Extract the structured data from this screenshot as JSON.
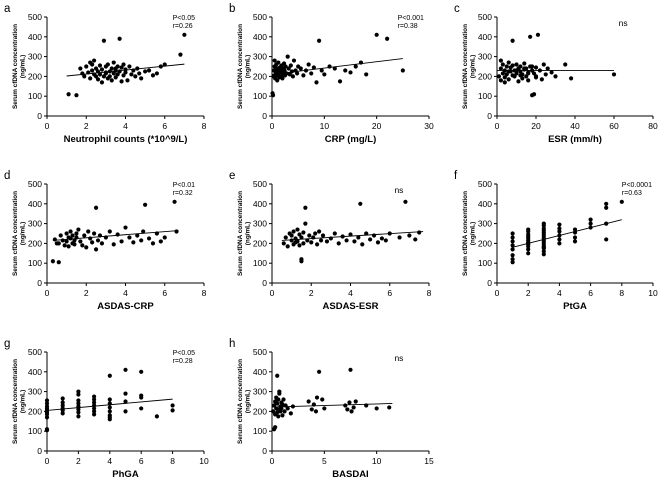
{
  "chart_data": [
    {
      "type": "scatter",
      "panel": "a",
      "xlabel": "Neutrophil counts (*10^9/L)",
      "ylabel": "Serum cfDNA concentration (ng/mL)",
      "xlim": [
        0,
        8
      ],
      "ylim": [
        0,
        500
      ],
      "xticks": [
        0,
        2,
        4,
        6,
        8
      ],
      "yticks": [
        0,
        100,
        200,
        300,
        400,
        500
      ],
      "stats": [
        "P<0.05",
        "r=0.26"
      ],
      "fit": [
        [
          1.0,
          202
        ],
        [
          7.0,
          262
        ]
      ],
      "x": [
        1.1,
        1.5,
        1.7,
        1.8,
        1.9,
        2.0,
        2.1,
        2.2,
        2.2,
        2.3,
        2.3,
        2.4,
        2.4,
        2.5,
        2.5,
        2.6,
        2.6,
        2.7,
        2.7,
        2.8,
        2.8,
        2.9,
        2.9,
        3.0,
        3.0,
        3.1,
        3.1,
        3.2,
        3.2,
        3.3,
        3.3,
        3.4,
        3.4,
        3.5,
        3.5,
        3.6,
        3.6,
        3.7,
        3.7,
        3.8,
        3.8,
        3.9,
        3.9,
        4.0,
        4.0,
        4.1,
        4.2,
        4.3,
        4.4,
        4.5,
        4.6,
        4.7,
        4.8,
        5.0,
        5.2,
        5.4,
        5.6,
        5.8,
        6.0,
        6.8,
        7.0,
        3.5,
        3.0
      ],
      "y": [
        110,
        105,
        240,
        215,
        200,
        250,
        220,
        270,
        190,
        230,
        260,
        210,
        280,
        200,
        240,
        185,
        225,
        255,
        210,
        170,
        235,
        200,
        380,
        215,
        250,
        190,
        260,
        225,
        200,
        240,
        180,
        215,
        270,
        230,
        195,
        250,
        210,
        390,
        225,
        245,
        175,
        260,
        205,
        220,
        235,
        180,
        250,
        210,
        230,
        200,
        240,
        215,
        190,
        225,
        230,
        205,
        215,
        250,
        260,
        310,
        410,
        240,
        220
      ]
    },
    {
      "type": "scatter",
      "panel": "b",
      "xlabel": "CRP (mg/L)",
      "ylabel": "Serum cfDNA concentration (ng/mL)",
      "xlim": [
        0,
        30
      ],
      "ylim": [
        0,
        500
      ],
      "xticks": [
        0,
        10,
        20,
        30
      ],
      "yticks": [
        0,
        100,
        200,
        300,
        400,
        500
      ],
      "stats": [
        "P<0.001",
        "r=0.38"
      ],
      "fit": [
        [
          0,
          210
        ],
        [
          25,
          290
        ]
      ],
      "x": [
        0.1,
        0.2,
        0.3,
        0.4,
        0.5,
        0.6,
        0.7,
        0.8,
        0.9,
        1.0,
        1.0,
        1.1,
        1.2,
        1.3,
        1.4,
        1.5,
        1.6,
        1.7,
        1.8,
        1.9,
        2.0,
        2.1,
        2.2,
        2.3,
        2.4,
        2.5,
        2.6,
        2.8,
        3.0,
        3.2,
        3.4,
        3.6,
        3.8,
        4.0,
        4.2,
        4.5,
        4.8,
        5.0,
        5.5,
        6.0,
        6.5,
        7.0,
        7.5,
        8.0,
        8.5,
        9.0,
        9.5,
        10.0,
        11,
        12,
        13,
        14,
        15,
        16,
        17,
        18,
        20,
        22,
        25,
        0.5,
        1.5
      ],
      "y": [
        115,
        105,
        200,
        230,
        250,
        190,
        215,
        260,
        205,
        240,
        180,
        225,
        270,
        210,
        195,
        245,
        230,
        200,
        255,
        220,
        190,
        240,
        210,
        265,
        230,
        205,
        250,
        215,
        300,
        240,
        210,
        255,
        225,
        200,
        280,
        230,
        215,
        250,
        240,
        205,
        230,
        260,
        215,
        245,
        170,
        380,
        230,
        210,
        250,
        240,
        175,
        230,
        220,
        250,
        270,
        210,
        410,
        390,
        230,
        280,
        200
      ]
    },
    {
      "type": "scatter",
      "panel": "c",
      "xlabel": "ESR (mm/h)",
      "ylabel": "Serum cfDNA concentration (ng/mL)",
      "xlim": [
        0,
        80
      ],
      "ylim": [
        0,
        500
      ],
      "xticks": [
        0,
        20,
        40,
        60,
        80
      ],
      "yticks": [
        0,
        100,
        200,
        300,
        400,
        500
      ],
      "stats": [
        "ns"
      ],
      "fit": [
        [
          0,
          230
        ],
        [
          60,
          230
        ]
      ],
      "x": [
        1,
        2,
        2,
        3,
        3,
        4,
        4,
        5,
        5,
        6,
        6,
        7,
        7,
        8,
        8,
        9,
        9,
        10,
        10,
        11,
        11,
        12,
        12,
        13,
        13,
        14,
        14,
        15,
        15,
        16,
        16,
        17,
        17,
        18,
        18,
        19,
        19,
        20,
        20,
        21,
        22,
        23,
        24,
        25,
        26,
        28,
        30,
        35,
        38,
        60,
        2,
        4,
        6,
        8,
        10,
        12,
        14,
        16,
        18,
        20
      ],
      "y": [
        200,
        240,
        180,
        260,
        215,
        230,
        195,
        250,
        210,
        270,
        185,
        225,
        245,
        205,
        380,
        230,
        200,
        260,
        215,
        240,
        175,
        225,
        250,
        210,
        190,
        235,
        265,
        200,
        240,
        220,
        180,
        250,
        400,
        105,
        230,
        215,
        110,
        245,
        200,
        410,
        230,
        185,
        260,
        210,
        240,
        220,
        200,
        260,
        190,
        210,
        280,
        170,
        225,
        255,
        230,
        205,
        240,
        215,
        250,
        195
      ]
    },
    {
      "type": "scatter",
      "panel": "d",
      "xlabel": "ASDAS-CRP",
      "ylabel": "Serum cfDNA concentration (ng/mL)",
      "xlim": [
        0,
        8
      ],
      "ylim": [
        0,
        500
      ],
      "xticks": [
        0,
        2,
        4,
        6,
        8
      ],
      "yticks": [
        0,
        100,
        200,
        300,
        400,
        500
      ],
      "stats": [
        "P<0.01",
        "r=0.32"
      ],
      "fit": [
        [
          0.3,
          215
        ],
        [
          6.7,
          265
        ]
      ],
      "x": [
        0.3,
        0.4,
        0.5,
        0.6,
        0.7,
        0.8,
        0.9,
        1.0,
        1.0,
        1.1,
        1.1,
        1.2,
        1.2,
        1.3,
        1.3,
        1.4,
        1.4,
        1.5,
        1.5,
        1.6,
        1.7,
        1.8,
        1.9,
        2.0,
        2.1,
        2.2,
        2.3,
        2.4,
        2.5,
        2.6,
        2.7,
        2.8,
        3.0,
        3.2,
        3.4,
        3.6,
        3.8,
        4.0,
        4.2,
        4.4,
        4.6,
        4.8,
        5.0,
        5.2,
        5.4,
        5.6,
        5.8,
        6.0,
        6.5,
        6.6,
        2.5,
        0.6,
        4.9
      ],
      "y": [
        110,
        220,
        200,
        105,
        240,
        215,
        190,
        250,
        210,
        230,
        185,
        260,
        225,
        200,
        240,
        215,
        195,
        250,
        230,
        270,
        210,
        190,
        240,
        180,
        260,
        225,
        205,
        250,
        380,
        215,
        240,
        200,
        230,
        260,
        195,
        245,
        210,
        280,
        230,
        205,
        240,
        215,
        395,
        225,
        200,
        250,
        210,
        230,
        410,
        260,
        170,
        200,
        260
      ]
    },
    {
      "type": "scatter",
      "panel": "e",
      "xlabel": "ASDAS-ESR",
      "ylabel": "Serum cfDNA concentration (ng/mL)",
      "xlim": [
        0,
        8
      ],
      "ylim": [
        0,
        500
      ],
      "xticks": [
        0,
        2,
        4,
        6,
        8
      ],
      "yticks": [
        0,
        100,
        200,
        300,
        400,
        500
      ],
      "stats": [
        "ns"
      ],
      "fit": [
        [
          0.5,
          215
        ],
        [
          7.7,
          260
        ]
      ],
      "x": [
        0.6,
        0.7,
        0.8,
        0.9,
        1.0,
        1.0,
        1.1,
        1.1,
        1.2,
        1.2,
        1.3,
        1.3,
        1.4,
        1.4,
        1.5,
        1.5,
        1.6,
        1.6,
        1.7,
        1.8,
        1.9,
        2.0,
        2.1,
        2.2,
        2.3,
        2.4,
        2.5,
        2.6,
        2.8,
        3.0,
        3.2,
        3.4,
        3.6,
        3.8,
        4.0,
        4.2,
        4.4,
        4.6,
        4.8,
        5.0,
        5.2,
        5.4,
        5.6,
        5.8,
        6.0,
        6.5,
        6.8,
        7.0,
        7.3,
        7.5,
        1.5,
        1.7,
        4.5
      ],
      "y": [
        200,
        230,
        185,
        250,
        215,
        240,
        195,
        260,
        225,
        205,
        270,
        210,
        190,
        245,
        230,
        110,
        255,
        200,
        380,
        215,
        240,
        205,
        230,
        250,
        195,
        260,
        215,
        240,
        210,
        225,
        250,
        200,
        235,
        215,
        245,
        210,
        230,
        195,
        250,
        220,
        240,
        205,
        225,
        215,
        250,
        230,
        410,
        240,
        220,
        255,
        120,
        300,
        400
      ]
    },
    {
      "type": "scatter",
      "panel": "f",
      "xlabel": "PtGA",
      "ylabel": "Serum cfDNA concentration (ng/mL)",
      "xlim": [
        0,
        10
      ],
      "ylim": [
        0,
        500
      ],
      "xticks": [
        0,
        2,
        4,
        6,
        8,
        10
      ],
      "yticks": [
        0,
        100,
        200,
        300,
        400,
        500
      ],
      "stats": [
        "P<0.0001",
        "r=0.63"
      ],
      "fit": [
        [
          1.0,
          180
        ],
        [
          8.0,
          320
        ]
      ],
      "x": [
        1,
        1,
        1,
        1,
        1,
        1,
        1,
        2,
        2,
        2,
        2,
        2,
        2,
        2,
        2,
        2,
        2,
        2,
        3,
        3,
        3,
        3,
        3,
        3,
        3,
        3,
        3,
        3,
        3,
        3,
        3,
        3,
        3,
        4,
        4,
        4,
        4,
        4,
        4,
        5,
        5,
        5,
        5,
        6,
        6,
        6,
        7,
        7,
        7,
        7,
        8,
        2,
        3,
        1
      ],
      "y": [
        105,
        120,
        170,
        190,
        210,
        230,
        250,
        150,
        170,
        185,
        195,
        205,
        215,
        225,
        235,
        245,
        260,
        270,
        145,
        160,
        175,
        185,
        195,
        205,
        215,
        225,
        235,
        245,
        255,
        265,
        275,
        290,
        300,
        200,
        220,
        240,
        260,
        275,
        295,
        210,
        230,
        255,
        270,
        280,
        300,
        320,
        220,
        300,
        380,
        400,
        410,
        200,
        180,
        140
      ]
    },
    {
      "type": "scatter",
      "panel": "g",
      "xlabel": "PhGA",
      "ylabel": "Serum cfDNA concentration (ng/mL)",
      "xlim": [
        0,
        10
      ],
      "ylim": [
        0,
        500
      ],
      "xticks": [
        0,
        2,
        4,
        6,
        8,
        10
      ],
      "yticks": [
        0,
        100,
        200,
        300,
        400,
        500
      ],
      "stats": [
        "P<0.05",
        "r=0.28"
      ],
      "fit": [
        [
          0,
          205
        ],
        [
          8.0,
          262
        ]
      ],
      "x": [
        0,
        0,
        0,
        0,
        0,
        0,
        0,
        0,
        0,
        1,
        1,
        1,
        1,
        1,
        1,
        2,
        2,
        2,
        2,
        2,
        2,
        2,
        3,
        3,
        3,
        3,
        3,
        3,
        3,
        4,
        4,
        4,
        4,
        4,
        4,
        4,
        5,
        5,
        5,
        5,
        6,
        6,
        6,
        6,
        7,
        8,
        8,
        0,
        2,
        4
      ],
      "y": [
        105,
        170,
        185,
        195,
        205,
        215,
        225,
        240,
        255,
        190,
        205,
        215,
        230,
        245,
        265,
        175,
        195,
        210,
        225,
        240,
        255,
        300,
        185,
        200,
        215,
        230,
        245,
        260,
        275,
        160,
        180,
        200,
        220,
        240,
        260,
        380,
        200,
        250,
        290,
        410,
        215,
        270,
        280,
        400,
        175,
        205,
        230,
        110,
        285,
        170
      ]
    },
    {
      "type": "scatter",
      "panel": "h",
      "xlabel": "BASDAI",
      "ylabel": "Serum cfDNA concentration (ng/mL)",
      "xlim": [
        0,
        15
      ],
      "ylim": [
        0,
        500
      ],
      "xticks": [
        0,
        5,
        10,
        15
      ],
      "yticks": [
        0,
        100,
        200,
        300,
        400,
        500
      ],
      "stats": [
        "ns"
      ],
      "fit": [
        [
          0,
          222
        ],
        [
          11.5,
          240
        ]
      ],
      "x": [
        0.1,
        0.2,
        0.2,
        0.3,
        0.3,
        0.4,
        0.4,
        0.5,
        0.5,
        0.6,
        0.6,
        0.7,
        0.7,
        0.8,
        0.8,
        0.9,
        0.9,
        1.0,
        1.0,
        1.1,
        1.2,
        1.3,
        1.5,
        1.8,
        2.0,
        3.5,
        3.8,
        4.0,
        4.2,
        4.5,
        4.8,
        5.0,
        7.0,
        7.2,
        7.4,
        7.6,
        7.8,
        8.0,
        9.0,
        10.0,
        11.2,
        0.5,
        0.3,
        7.5,
        4.3,
        0.7
      ],
      "y": [
        200,
        230,
        110,
        250,
        185,
        215,
        270,
        195,
        240,
        175,
        260,
        210,
        290,
        225,
        200,
        245,
        215,
        180,
        235,
        260,
        200,
        230,
        215,
        190,
        225,
        250,
        210,
        235,
        200,
        400,
        260,
        215,
        230,
        210,
        245,
        200,
        220,
        250,
        230,
        215,
        220,
        380,
        120,
        410,
        270,
        300
      ]
    }
  ]
}
